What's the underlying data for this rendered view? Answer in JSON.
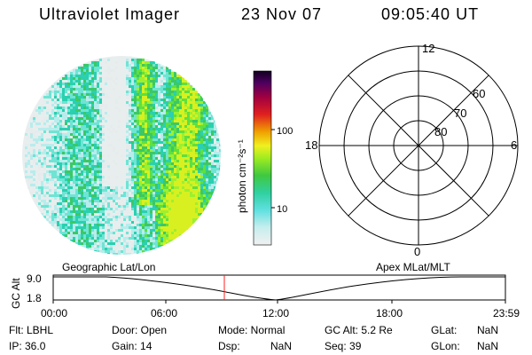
{
  "header": {
    "instrument": "Ultraviolet Imager",
    "date": "23 Nov 07",
    "time": "09:05:40 UT"
  },
  "colorbar": {
    "unit_label": "photon cm⁻²s⁻¹",
    "ticks": [
      "100",
      "10"
    ]
  },
  "polar_plot": {
    "mlt_labels": [
      "12",
      "18",
      "6",
      "0"
    ],
    "lat_labels": [
      "60",
      "70",
      "80"
    ]
  },
  "orbit_plot": {
    "left_title": "Geographic Lat/Lon",
    "right_title": "Apex MLat/MLT",
    "y_label": "GC Alt",
    "y_ticks": [
      "9.0",
      "1.8"
    ],
    "x_ticks": [
      "00:00",
      "06:00",
      "12:00",
      "18:00",
      "23:59"
    ],
    "marker_time": "09:05:40"
  },
  "footer": {
    "flt": "Flt: LBHL",
    "ip": "IP: 36.0",
    "door": "Door: Open",
    "gain": "Gain: 14",
    "mode": "Mode: Normal",
    "dsp": "Dsp:",
    "dsp_val": "NaN",
    "gc_alt": "GC Alt: 5.2 Re",
    "seq": "Seq: 39",
    "glat": "GLat:",
    "glat_val": "NaN",
    "glon": "GLon:",
    "glon_val": "NaN"
  },
  "colors": {
    "marker": "#ff2020",
    "image_palette": [
      "#e6ecec",
      "#b8ecec",
      "#6ee4d4",
      "#2ad0b0",
      "#3cc864",
      "#5ee040",
      "#9cf030",
      "#d8f020"
    ]
  }
}
